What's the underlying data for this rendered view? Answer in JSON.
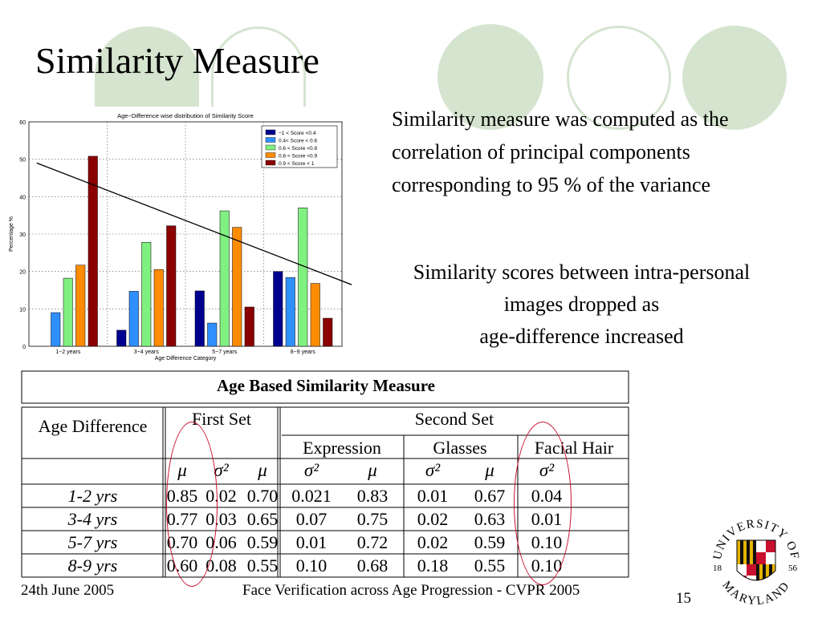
{
  "slide": {
    "title": "Similarity Measure",
    "text_block_1": "Similarity measure was  computed as the correlation of principal components corresponding to 95 % of  the variance",
    "text_block_2_lines": [
      "Similarity scores between intra-personal",
      "images dropped as",
      "age-difference increased"
    ],
    "footer_date": "24th June 2005",
    "footer_center": "Face Verification across Age Progression - CVPR 2005",
    "page_number": "15",
    "accent_color": "#d5e4cf",
    "annotation_color": "#c8102e"
  },
  "logo": {
    "top_text": "UNIVERSITY OF",
    "bottom_text": "MARYLAND",
    "year_left": "18",
    "year_right": "56"
  },
  "chart_data": {
    "type": "bar",
    "title": "Age−Difference wise distribution of Similarity Score",
    "xlabel": "Age Difference Category",
    "ylabel": "Percentage %",
    "ylim": [
      0,
      60
    ],
    "yticks": [
      "0",
      "10",
      "20",
      "30",
      "40",
      "50",
      "60"
    ],
    "grid": true,
    "legend_position": "top-right",
    "categories": [
      "1−2 years",
      "3−4 years",
      "5−7 years",
      "8−9 years"
    ],
    "series": [
      {
        "name": "−1 < Score <0.4",
        "color": "#00008f",
        "values": [
          0,
          4.3,
          14.8,
          20.0
        ]
      },
      {
        "name": "0.4< Score < 0.6",
        "color": "#2f8fff",
        "values": [
          9.0,
          14.7,
          6.2,
          18.4
        ]
      },
      {
        "name": "0.6 < Score <0.8",
        "color": "#80f080",
        "values": [
          18.2,
          27.8,
          36.2,
          37.0
        ]
      },
      {
        "name": "0.8 < Score <0.9",
        "color": "#ff8c00",
        "values": [
          21.7,
          20.5,
          31.8,
          16.8
        ]
      },
      {
        "name": "0.9 < Score < 1",
        "color": "#8b0000",
        "values": [
          50.8,
          32.2,
          10.5,
          7.5
        ]
      }
    ],
    "trend_arrow": {
      "from": [
        0.6,
        49
      ],
      "to": [
        5.3,
        11
      ]
    }
  },
  "table": {
    "title": "Age Based Similarity Measure",
    "row_header": "Age Difference",
    "first_set_label": "First Set",
    "second_set_label": "Second Set",
    "sub_groups": [
      "Expression",
      "Glasses",
      "Facial Hair"
    ],
    "mu_symbol": "μ",
    "sigma_symbol": "σ²",
    "rows": [
      {
        "label": "1-2 yrs",
        "values": [
          "0.85",
          "0.02",
          "0.70",
          "0.021",
          "0.83",
          "0.01",
          "0.67",
          "0.04"
        ]
      },
      {
        "label": "3-4 yrs",
        "values": [
          "0.77",
          "0.03",
          "0.65",
          "0.07",
          "0.75",
          "0.02",
          "0.63",
          "0.01"
        ]
      },
      {
        "label": "5-7 yrs",
        "values": [
          "0.70",
          "0.06",
          "0.59",
          "0.01",
          "0.72",
          "0.02",
          "0.59",
          "0.10"
        ]
      },
      {
        "label": "8-9 yrs",
        "values": [
          "0.60",
          "0.08",
          "0.55",
          "0.10",
          "0.68",
          "0.18",
          "0.55",
          "0.10"
        ]
      }
    ]
  }
}
